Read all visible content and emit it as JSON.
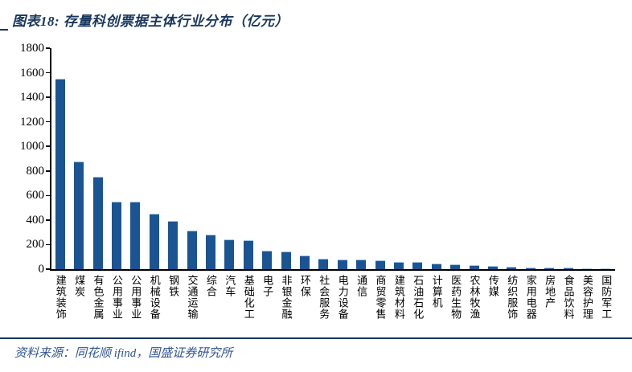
{
  "header": {
    "title": "图表18:  存量科创票据主体行业分布（亿元）"
  },
  "footer": {
    "source": "资料来源：同花顺 ifind，国盛证券研究所"
  },
  "colors": {
    "bar": "#1B5492",
    "bar_top_edge": "#9CC2E5",
    "title_text": "#17375E",
    "footer_text": "#2F5496",
    "divider": "#17375E",
    "axis": "#000000"
  },
  "chart_data": {
    "type": "bar",
    "title": "存量科创票据主体行业分布（亿元）",
    "xlabel": "",
    "ylabel": "",
    "ylim": [
      0,
      1800
    ],
    "yticks": [
      0,
      200,
      400,
      600,
      800,
      1000,
      1200,
      1400,
      1600,
      1800
    ],
    "grid": false,
    "legend": null,
    "categories": [
      "建筑装饰",
      "煤炭",
      "有色金属",
      "公用事业",
      "公用事业",
      "机械设备",
      "钢铁",
      "交通运输",
      "综合",
      "汽车",
      "基础化工",
      "电子",
      "非银金融",
      "环保",
      "社会服务",
      "电力设备",
      "通信",
      "商贸零售",
      "建筑材料",
      "石油石化",
      "计算机",
      "医药生物",
      "农林牧渔",
      "传媒",
      "纺织服饰",
      "家用电器",
      "房地产",
      "食品饮料",
      "美容护理",
      "国防军工"
    ],
    "values": [
      1550,
      875,
      750,
      550,
      548,
      450,
      390,
      313,
      280,
      245,
      235,
      150,
      143,
      110,
      88,
      78,
      76,
      70,
      60,
      58,
      48,
      42,
      33,
      25,
      20,
      16,
      12,
      10,
      8,
      5
    ]
  }
}
